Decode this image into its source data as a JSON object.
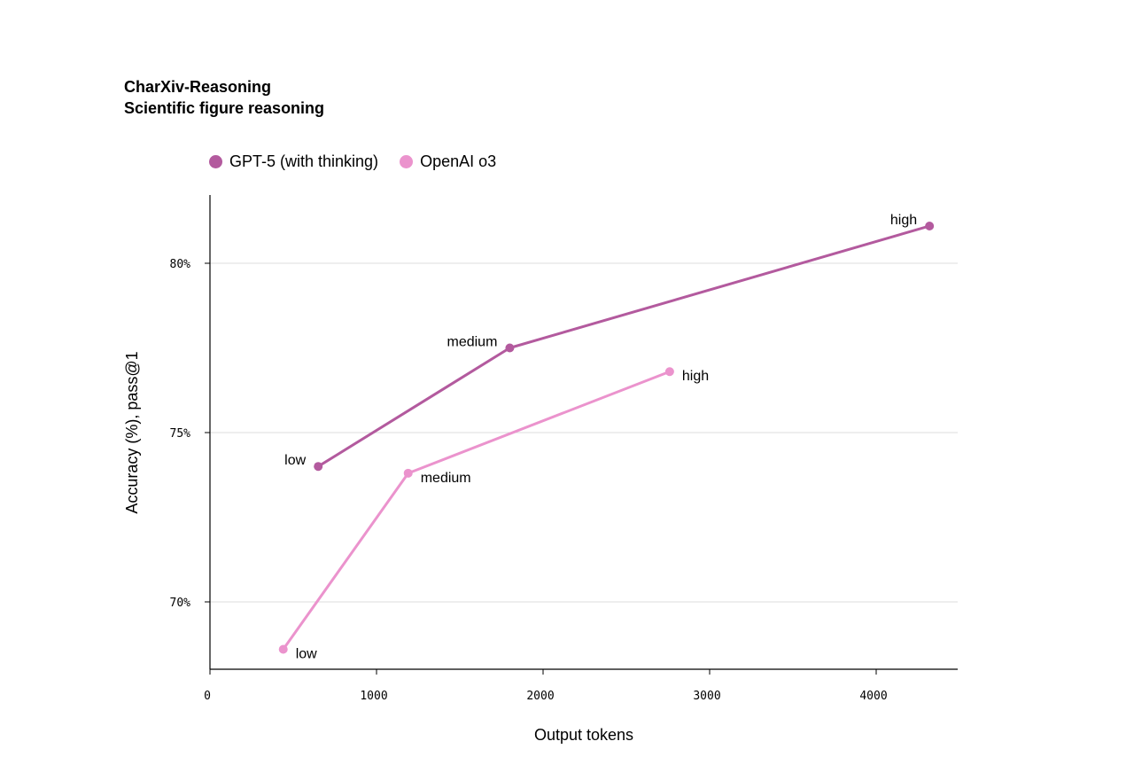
{
  "chart_data": {
    "type": "line",
    "title": "CharXiv-Reasoning",
    "subtitle": "Scientific figure reasoning",
    "xlabel": "Output tokens",
    "ylabel": "Accuracy (%), pass@1",
    "xlim": [
      0,
      4500
    ],
    "ylim": [
      68,
      82
    ],
    "xticks": [
      0,
      1000,
      2000,
      3000,
      4000
    ],
    "xtick_labels": [
      "0",
      "1000",
      "2000",
      "3000",
      "4000"
    ],
    "yticks": [
      70,
      75,
      80
    ],
    "ytick_labels": [
      "70%",
      "75%",
      "80%"
    ],
    "grid": "horizontal",
    "legend_position": "top-left",
    "series": [
      {
        "name": "GPT-5 (with thinking)",
        "color": "#B35A9E",
        "points": [
          {
            "x": 650,
            "y": 74.0,
            "label": "low",
            "label_pos": "left"
          },
          {
            "x": 1800,
            "y": 77.5,
            "label": "medium",
            "label_pos": "left"
          },
          {
            "x": 4320,
            "y": 81.1,
            "label": "high",
            "label_pos": "left"
          }
        ]
      },
      {
        "name": "OpenAI o3",
        "color": "#EB93CD",
        "points": [
          {
            "x": 440,
            "y": 68.6,
            "label": "low",
            "label_pos": "right"
          },
          {
            "x": 1190,
            "y": 73.8,
            "label": "medium",
            "label_pos": "right"
          },
          {
            "x": 2760,
            "y": 76.8,
            "label": "high",
            "label_pos": "right"
          }
        ]
      }
    ]
  }
}
